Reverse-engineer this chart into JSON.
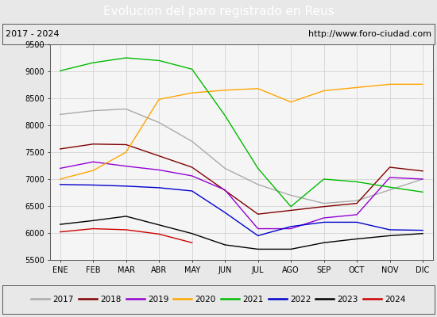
{
  "title": "Evolucion del paro registrado en Reus",
  "subtitle_left": "2017 - 2024",
  "subtitle_right": "http://www.foro-ciudad.com",
  "x_labels": [
    "ENE",
    "FEB",
    "MAR",
    "ABR",
    "MAY",
    "JUN",
    "JUL",
    "AGO",
    "SEP",
    "OCT",
    "NOV",
    "DIC"
  ],
  "ylim": [
    5500,
    9500
  ],
  "yticks": [
    5500,
    6000,
    6500,
    7000,
    7500,
    8000,
    8500,
    9000,
    9500
  ],
  "series": {
    "2017": {
      "color": "#aaaaaa",
      "data": [
        8200,
        8270,
        8300,
        8050,
        7700,
        7200,
        6900,
        6700,
        6550,
        6600,
        6800,
        7000
      ]
    },
    "2018": {
      "color": "#800000",
      "data": [
        7560,
        7650,
        7640,
        7430,
        7220,
        6790,
        6350,
        6420,
        6490,
        6550,
        7220,
        7150
      ]
    },
    "2019": {
      "color": "#9400d3",
      "data": [
        7200,
        7320,
        7240,
        7170,
        7060,
        6800,
        6080,
        6080,
        6280,
        6340,
        7030,
        7000
      ]
    },
    "2020": {
      "color": "#ffa500",
      "data": [
        7000,
        7160,
        7500,
        8480,
        8600,
        8650,
        8680,
        8430,
        8640,
        8700,
        8760,
        8760
      ]
    },
    "2021": {
      "color": "#00bb00",
      "data": [
        9010,
        9160,
        9250,
        9200,
        9040,
        8180,
        7200,
        6490,
        7000,
        6950,
        6850,
        6760
      ]
    },
    "2022": {
      "color": "#0000cc",
      "data": [
        6900,
        6890,
        6870,
        6840,
        6780,
        6380,
        5950,
        6120,
        6200,
        6200,
        6060,
        6050
      ]
    },
    "2023": {
      "color": "#000000",
      "data": [
        6160,
        6230,
        6310,
        6150,
        5990,
        5780,
        5700,
        5700,
        5820,
        5890,
        5950,
        5990
      ]
    },
    "2024": {
      "color": "#cc0000",
      "data": [
        6020,
        6080,
        6060,
        5980,
        5820,
        null,
        null,
        null,
        null,
        null,
        null,
        null
      ]
    }
  },
  "background_color": "#e8e8e8",
  "plot_bg_color": "#f5f5f5",
  "title_bg_color": "#4f86c6",
  "title_color": "#ffffff",
  "title_fontsize": 11,
  "subtitle_fontsize": 8,
  "legend_fontsize": 7.5,
  "tick_fontsize": 7
}
